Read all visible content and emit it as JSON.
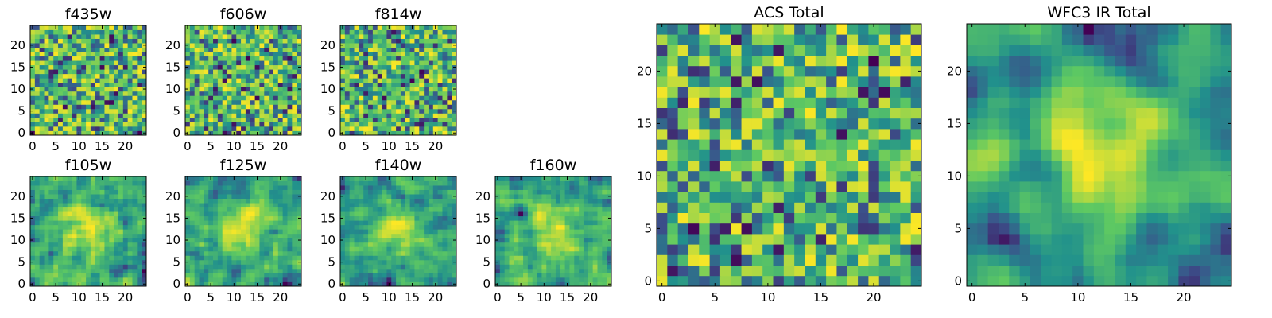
{
  "chart_data": [
    {
      "type": "heatmap",
      "title": "f435w",
      "grid_size": 25,
      "xticks": [
        0,
        5,
        10,
        15,
        20
      ],
      "yticks": [
        0,
        5,
        10,
        15,
        20
      ],
      "colormap": "viridis",
      "seed": 11,
      "smooth": 0
    },
    {
      "type": "heatmap",
      "title": "f606w",
      "grid_size": 25,
      "xticks": [
        0,
        5,
        10,
        15,
        20
      ],
      "yticks": [
        0,
        5,
        10,
        15,
        20
      ],
      "colormap": "viridis",
      "seed": 23,
      "smooth": 0
    },
    {
      "type": "heatmap",
      "title": "f814w",
      "grid_size": 25,
      "xticks": [
        0,
        5,
        10,
        15,
        20
      ],
      "yticks": [
        0,
        5,
        10,
        15,
        20
      ],
      "colormap": "viridis",
      "seed": 37,
      "smooth": 0
    },
    {
      "type": "heatmap",
      "title": "f105w",
      "grid_size": 25,
      "xticks": [
        0,
        5,
        10,
        15,
        20
      ],
      "yticks": [
        0,
        5,
        10,
        15,
        20
      ],
      "colormap": "viridis",
      "seed": 41,
      "smooth": 1
    },
    {
      "type": "heatmap",
      "title": "f125w",
      "grid_size": 25,
      "xticks": [
        0,
        5,
        10,
        15,
        20
      ],
      "yticks": [
        0,
        5,
        10,
        15,
        20
      ],
      "colormap": "viridis",
      "seed": 53,
      "smooth": 1
    },
    {
      "type": "heatmap",
      "title": "f140w",
      "grid_size": 25,
      "xticks": [
        0,
        5,
        10,
        15,
        20
      ],
      "yticks": [
        0,
        5,
        10,
        15,
        20
      ],
      "colormap": "viridis",
      "seed": 67,
      "smooth": 1
    },
    {
      "type": "heatmap",
      "title": "f160w",
      "grid_size": 25,
      "xticks": [
        0,
        5,
        10,
        15,
        20
      ],
      "yticks": [
        0,
        5,
        10,
        15,
        20
      ],
      "colormap": "viridis",
      "seed": 79,
      "smooth": 1
    },
    {
      "type": "heatmap",
      "title": "ACS Total",
      "grid_size": 25,
      "xticks": [
        0,
        5,
        10,
        15,
        20
      ],
      "yticks": [
        0,
        5,
        10,
        15,
        20
      ],
      "colormap": "viridis",
      "seed": 97,
      "smooth": 0
    },
    {
      "type": "heatmap",
      "title": "WFC3 IR Total",
      "grid_size": 25,
      "xticks": [
        0,
        5,
        10,
        15,
        20
      ],
      "yticks": [
        0,
        5,
        10,
        15,
        20
      ],
      "colormap": "viridis",
      "seed": 103,
      "smooth": 2
    }
  ]
}
